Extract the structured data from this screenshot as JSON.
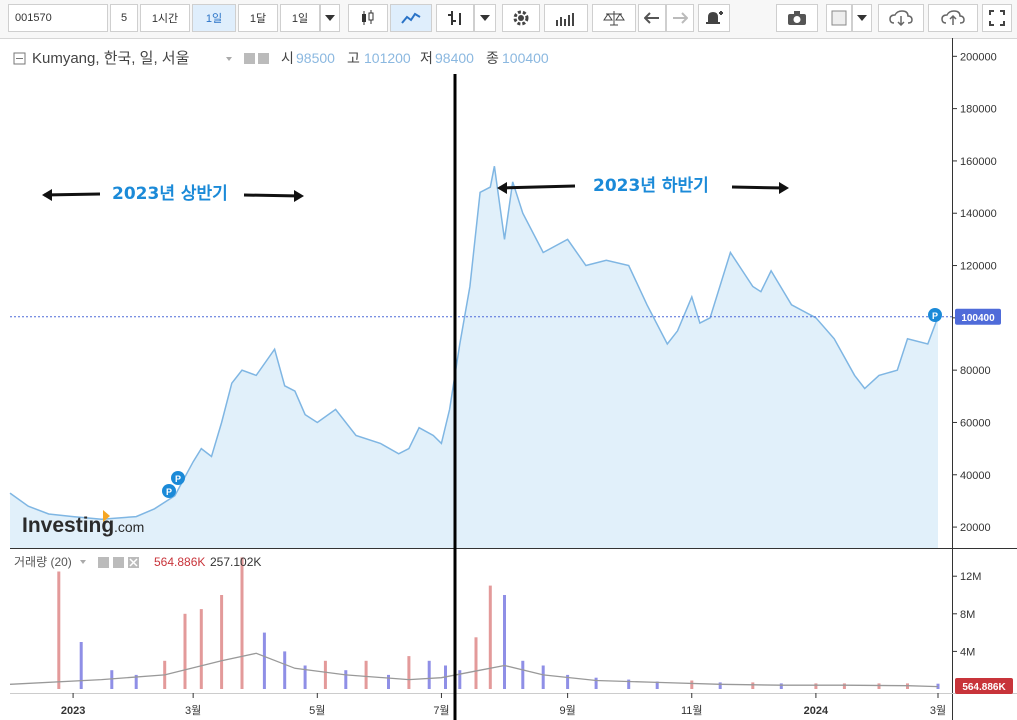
{
  "toolbar": {
    "symbol": "001570",
    "intervals": [
      "5",
      "1시간",
      "1일",
      "1달",
      "1일"
    ],
    "active_interval_index": 2
  },
  "legend": {
    "name": "Kumyang, 한국, 일, 서울",
    "open_label": "시",
    "open_value": "98500",
    "high_label": "고",
    "high_value": "101200",
    "low_label": "저",
    "low_value": "98400",
    "close_label": "종",
    "close_value": "100400"
  },
  "volume_legend": {
    "title": "거래량 (20)",
    "value1": "564.886K",
    "value2": "257.102K"
  },
  "annotations": {
    "first_half": "2023년 상반기",
    "second_half": "2023년 하반기"
  },
  "watermark": {
    "brand": "Investing",
    "suffix": ".com"
  },
  "price_marker": {
    "value": 100400,
    "label": "100400"
  },
  "volume_marker": {
    "label": "564.886K"
  },
  "colors": {
    "line": "#7fb6e3",
    "area": "#e1f0fa",
    "accent": "#1b8ad8",
    "vol_up": "#e39a9a",
    "vol_down": "#8f8fe6",
    "marker_up": "#c8343a",
    "marker_price": "#4f6bd9"
  },
  "chart_data": {
    "type": "area",
    "title": "Kumyang, 한국, 일, 서울",
    "x_ticks": [
      "2023",
      "3월",
      "5월",
      "7월",
      "9월",
      "11월",
      "2024",
      "3월"
    ],
    "x_tick_dates": [
      "2023-01-01",
      "2023-03-01",
      "2023-05-01",
      "2023-07-01",
      "2023-09-01",
      "2023-11-01",
      "2024-01-01",
      "2024-03-01"
    ],
    "y_ticks": [
      "20000",
      "40000",
      "60000",
      "80000",
      "100000",
      "120000",
      "140000",
      "160000",
      "180000",
      "200000"
    ],
    "ylim": [
      12000,
      207000
    ],
    "price_series": {
      "dates": [
        "2022-12-01",
        "2022-12-10",
        "2022-12-20",
        "2023-01-01",
        "2023-01-15",
        "2023-02-01",
        "2023-02-10",
        "2023-02-20",
        "2023-03-01",
        "2023-03-05",
        "2023-03-10",
        "2023-03-15",
        "2023-03-20",
        "2023-03-25",
        "2023-04-01",
        "2023-04-10",
        "2023-04-15",
        "2023-04-20",
        "2023-04-25",
        "2023-05-01",
        "2023-05-10",
        "2023-05-20",
        "2023-06-01",
        "2023-06-10",
        "2023-06-15",
        "2023-06-20",
        "2023-06-27",
        "2023-07-01",
        "2023-07-05",
        "2023-07-10",
        "2023-07-15",
        "2023-07-20",
        "2023-07-25",
        "2023-07-27",
        "2023-08-01",
        "2023-08-05",
        "2023-08-10",
        "2023-08-20",
        "2023-09-01",
        "2023-09-10",
        "2023-09-20",
        "2023-10-01",
        "2023-10-10",
        "2023-10-20",
        "2023-10-25",
        "2023-11-01",
        "2023-11-05",
        "2023-11-10",
        "2023-11-20",
        "2023-12-01",
        "2023-12-05",
        "2023-12-10",
        "2023-12-20",
        "2024-01-01",
        "2024-01-10",
        "2024-01-20",
        "2024-01-25",
        "2024-02-01",
        "2024-02-10",
        "2024-02-15",
        "2024-02-25",
        "2024-03-01"
      ],
      "values": [
        33000,
        28000,
        25000,
        24000,
        23000,
        24000,
        27000,
        32000,
        45000,
        50000,
        47000,
        60000,
        75000,
        80000,
        78000,
        88000,
        74000,
        72000,
        63000,
        60000,
        65000,
        55000,
        52000,
        48000,
        50000,
        58000,
        55000,
        52000,
        65000,
        90000,
        112000,
        148000,
        150000,
        158000,
        130000,
        152000,
        140000,
        125000,
        130000,
        120000,
        122000,
        120000,
        105000,
        90000,
        95000,
        108000,
        98000,
        100000,
        125000,
        112000,
        110000,
        118000,
        105000,
        100000,
        92000,
        78000,
        73000,
        78000,
        80000,
        92000,
        90000,
        100400
      ]
    },
    "volume_series": {
      "y_ticks": [
        "4M",
        "8M",
        "12M"
      ],
      "ylim": [
        0,
        15000000
      ],
      "dates": [
        "2022-12-25",
        "2023-01-05",
        "2023-01-20",
        "2023-02-01",
        "2023-02-15",
        "2023-02-25",
        "2023-03-05",
        "2023-03-15",
        "2023-03-25",
        "2023-04-05",
        "2023-04-15",
        "2023-04-25",
        "2023-05-05",
        "2023-05-15",
        "2023-05-25",
        "2023-06-05",
        "2023-06-15",
        "2023-06-25",
        "2023-07-03",
        "2023-07-10",
        "2023-07-18",
        "2023-07-25",
        "2023-08-01",
        "2023-08-10",
        "2023-08-20",
        "2023-09-01",
        "2023-09-15",
        "2023-10-01",
        "2023-10-15",
        "2023-11-01",
        "2023-11-15",
        "2023-12-01",
        "2023-12-15",
        "2024-01-01",
        "2024-01-15",
        "2024-02-01",
        "2024-02-15",
        "2024-03-01"
      ],
      "values": [
        12500000,
        5000000,
        2000000,
        1500000,
        3000000,
        8000000,
        8500000,
        10000000,
        14000000,
        6000000,
        4000000,
        2500000,
        3000000,
        2000000,
        3000000,
        1500000,
        3500000,
        3000000,
        2500000,
        2000000,
        5500000,
        11000000,
        10000000,
        3000000,
        2500000,
        1500000,
        1200000,
        1000000,
        800000,
        900000,
        700000,
        700000,
        600000,
        600000,
        600000,
        600000,
        600000,
        564886
      ],
      "ma20_dates": [
        "2022-12-01",
        "2023-01-15",
        "2023-02-15",
        "2023-03-15",
        "2023-04-01",
        "2023-04-20",
        "2023-05-15",
        "2023-06-15",
        "2023-07-01",
        "2023-07-20",
        "2023-08-01",
        "2023-08-20",
        "2023-09-15",
        "2023-10-15",
        "2023-11-15",
        "2023-12-15",
        "2024-01-15",
        "2024-02-15",
        "2024-03-01"
      ],
      "ma20_values": [
        500000,
        1000000,
        1500000,
        3000000,
        3800000,
        2200000,
        1500000,
        1000000,
        1200000,
        2000000,
        2500000,
        1500000,
        900000,
        700000,
        500000,
        400000,
        400000,
        350000,
        257102
      ]
    }
  }
}
